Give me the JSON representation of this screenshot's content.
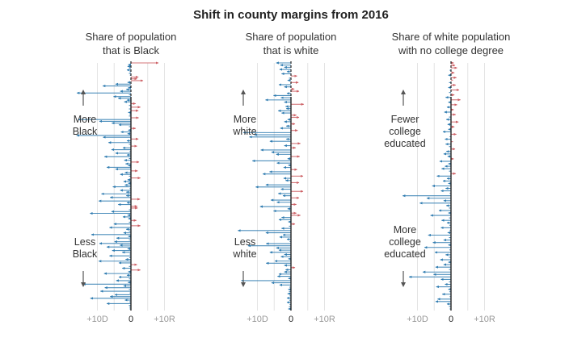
{
  "chart_data": {
    "type": "arrow-strip",
    "title": "Shift in county margins from 2016",
    "x_ticks": [
      "+10D",
      "0",
      "+10R"
    ],
    "xlim": [
      -10,
      10
    ],
    "colors": {
      "dem": "#2e7bb0",
      "rep": "#cc5e63",
      "axis": "#222222",
      "grid": "#e4e4e4"
    },
    "panels": [
      {
        "title_lines": [
          "Share of population",
          "that is Black"
        ],
        "top_label": [
          "More",
          "Black"
        ],
        "bottom_label": [
          "Less",
          "Black"
        ],
        "shifts": [
          8.2,
          -0.8,
          -1.0,
          -0.5,
          -1.2,
          -0.4,
          -0.6,
          -0.3,
          2.2,
          1.8,
          3.6,
          -1.0,
          -4.6,
          -8.4,
          -0.8,
          -1.4,
          -3.2,
          -16.1,
          -0.6,
          -5.2,
          -3.8,
          -1.2,
          -2.0,
          1.4,
          -0.6,
          2.8,
          -0.6,
          2.2,
          -0.8,
          -0.4,
          -0.6,
          2.3,
          -15.7,
          -9.4,
          -5.7,
          -3.6,
          -0.6,
          1.4,
          -0.8,
          -3.0,
          -1.0,
          -16.2,
          -8.3,
          2.2,
          -1.2,
          -6.7,
          -0.6,
          1.8,
          -2.4,
          -5.8,
          -0.4,
          -4.6,
          -1.2,
          -7.9,
          -0.6,
          -2.0,
          2.4,
          -1.6,
          -0.8,
          -7.2,
          -4.6,
          2.0,
          -1.8,
          -3.2,
          -0.6,
          2.8,
          -1.0,
          -2.2,
          -0.8,
          -1.8,
          -5.4,
          -0.4,
          -3.2,
          -1.4,
          -8.8,
          -1.4,
          -6.2,
          2.7,
          -9.6,
          -1.2,
          -3.8,
          1.9,
          2.0,
          -0.6,
          -5.8,
          -12.2,
          -1.0,
          -2.4,
          -0.8,
          1.6,
          -0.6,
          -5.1,
          2.8,
          -6.4,
          -1.4,
          -0.6,
          -2.2,
          -11.8,
          -0.8,
          -4.3,
          -0.6,
          -4.9,
          -9.4,
          -3.3,
          -7.2,
          -1.0,
          -5.6,
          -2.6,
          -0.4,
          -6.4,
          -0.5,
          -1.6,
          -9.6,
          -3.6,
          1.8,
          -0.6,
          -2.6,
          2.8,
          -0.8,
          -8.0,
          -1.2,
          -3.6,
          -0.6,
          -4.4,
          -0.9,
          -14.3,
          -2.2,
          -7.8,
          -0.6,
          -9.1,
          -0.4,
          -4.8,
          -6.2,
          -12.1,
          -1.8,
          -0.5,
          -7.2,
          -0.6,
          -0.5,
          -0.4
        ]
      },
      {
        "title_lines": [
          "Share of population",
          "that is white"
        ],
        "top_label": [
          "More",
          "white"
        ],
        "bottom_label": [
          "Less",
          "white"
        ],
        "shifts": [
          -4.4,
          -3.2,
          -2.0,
          -3.4,
          -1.2,
          -2.8,
          1.8,
          -0.6,
          -1.0,
          2.2,
          -3.6,
          -2.0,
          1.0,
          2.4,
          -1.2,
          -5.2,
          -3.0,
          -7.6,
          -2.0,
          3.8,
          -1.6,
          -1.4,
          -3.8,
          -2.8,
          1.6,
          2.4,
          -1.0,
          -2.0,
          1.2,
          -1.4,
          -3.2,
          2.0,
          -14.2,
          -10.9,
          -12.4,
          -1.4,
          -6.3,
          2.8,
          -2.0,
          1.4,
          -9.0,
          -5.8,
          -4.4,
          2.6,
          -1.0,
          -11.5,
          -4.2,
          -0.8,
          -2.2,
          1.8,
          -6.4,
          -8.4,
          3.6,
          -2.2,
          -1.6,
          2.4,
          -7.5,
          -10.5,
          -3.0,
          3.6,
          -3.8,
          -2.4,
          2.4,
          -6.0,
          -4.2,
          1.6,
          -9.2,
          -1.0,
          -5.2,
          1.6,
          2.8,
          -2.8,
          -3.6,
          -0.8,
          1.2,
          -0.6,
          -2.8,
          -15.8,
          -7.5,
          -2.4,
          -3.4,
          -1.2,
          -0.4,
          -7.4,
          -12.8,
          -4.4,
          -3.6,
          -6.3,
          -2.0,
          -3.0,
          -0.8,
          -4.8,
          -7.4,
          -2.0,
          1.2,
          -1.6,
          -2.0,
          -3.6,
          -4.0,
          -0.8,
          -14.8,
          -5.8,
          -3.4,
          -0.5,
          -0.8,
          -0.6,
          -1.0,
          -0.4,
          -1.2,
          -0.5,
          -1.2,
          -0.4,
          -0.6,
          -0.8
        ]
      },
      {
        "title_lines": [
          "Share of white population",
          "with no college degree"
        ],
        "top_label": [
          "Fewer",
          "college",
          "educated"
        ],
        "bottom_label": [
          "More",
          "college",
          "educated"
        ],
        "shifts": [
          0.8,
          1.2,
          1.8,
          -0.4,
          1.0,
          -0.8,
          1.6,
          0.6,
          -0.6,
          1.4,
          -0.8,
          2.4,
          -0.6,
          1.0,
          -1.6,
          2.8,
          -0.8,
          1.8,
          -1.2,
          0.8,
          -2.0,
          1.4,
          -0.6,
          -1.4,
          2.2,
          -1.0,
          1.0,
          -0.8,
          -2.4,
          1.6,
          -0.4,
          -1.8,
          0.6,
          -1.6,
          -0.6,
          1.2,
          -1.4,
          -2.2,
          -1.0,
          0.8,
          -3.4,
          -0.8,
          -1.8,
          -2.8,
          -0.6,
          1.4,
          -4.2,
          -1.2,
          -2.4,
          -0.8,
          -5.6,
          -1.6,
          -3.0,
          -0.4,
          -14.4,
          -7.2,
          -2.2,
          -9.3,
          -1.4,
          -0.6,
          -3.6,
          -0.8,
          -6.1,
          -0.6,
          -2.8,
          -1.2,
          -0.5,
          -3.0,
          -0.4,
          -1.0,
          -6.8,
          -0.6,
          -2.2,
          -5.4,
          -0.8,
          -7.9,
          -0.5,
          -4.8,
          -1.6,
          -0.6,
          -3.2,
          -0.8,
          -2.2,
          -4.6,
          -0.6,
          -8.4,
          -5.2,
          -12.5,
          -3.0,
          -0.6,
          -1.8,
          -4.4,
          -0.8,
          -0.5,
          -2.6,
          -0.4,
          -4.0,
          -4.6,
          -1.2,
          -0.6,
          -0.4
        ]
      }
    ]
  }
}
